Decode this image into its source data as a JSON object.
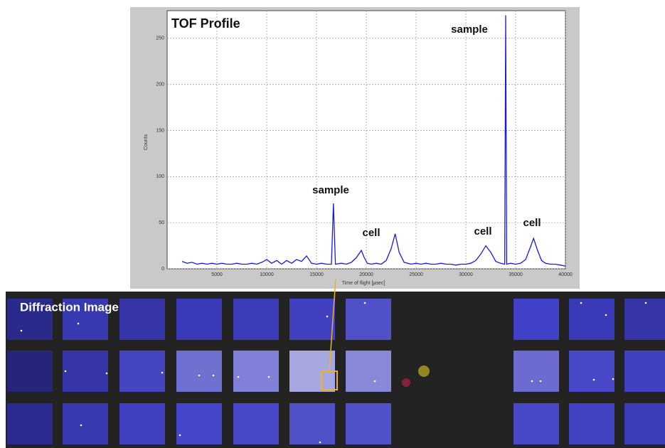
{
  "chart_data": {
    "type": "line",
    "title": "TOF Profile",
    "x_label": "Time of flight [μsec]",
    "y_label": "Counts",
    "x": [
      1500,
      2000,
      2500,
      3000,
      3500,
      4000,
      4500,
      5000,
      5500,
      6000,
      6500,
      7000,
      7500,
      8000,
      8500,
      9000,
      9500,
      10000,
      10500,
      11000,
      11500,
      12000,
      12500,
      13000,
      13500,
      14000,
      14500,
      15000,
      15500,
      16000,
      16500,
      16700,
      16900,
      17500,
      18000,
      18500,
      19000,
      19500,
      19800,
      20100,
      20500,
      21000,
      21500,
      22000,
      22500,
      22900,
      23300,
      23800,
      24500,
      25000,
      25500,
      26000,
      26500,
      27000,
      27500,
      28000,
      28500,
      29000,
      29500,
      30000,
      30500,
      31000,
      31500,
      32000,
      32500,
      33000,
      33500,
      33900,
      34000,
      34100,
      34500,
      35000,
      35500,
      36000,
      36500,
      36800,
      37200,
      37600,
      38000,
      38500,
      39000,
      39500,
      40000
    ],
    "values": [
      8,
      6,
      7,
      5,
      6,
      5,
      6,
      5,
      6,
      5,
      5,
      6,
      5,
      5,
      6,
      5,
      7,
      10,
      6,
      9,
      5,
      9,
      6,
      10,
      8,
      14,
      6,
      5,
      6,
      5,
      5,
      71,
      5,
      6,
      5,
      7,
      12,
      20,
      12,
      6,
      5,
      6,
      5,
      9,
      22,
      38,
      18,
      7,
      5,
      6,
      5,
      6,
      5,
      5,
      6,
      5,
      5,
      4,
      5,
      5,
      6,
      9,
      16,
      25,
      18,
      8,
      6,
      5,
      275,
      5,
      6,
      5,
      6,
      10,
      24,
      33,
      20,
      9,
      6,
      5,
      5,
      4,
      3
    ],
    "color": "#1a1adf",
    "xlim": [
      0,
      40000
    ],
    "ylim": [
      0,
      280
    ],
    "xticks": [
      5000,
      10000,
      15000,
      20000,
      25000,
      30000,
      35000,
      40000
    ],
    "yticks": [
      0,
      50,
      100,
      150,
      200,
      250
    ],
    "grid": true,
    "annotations": [
      "sample",
      "cell",
      "cell",
      "sample",
      "cell"
    ]
  },
  "diffraction_image": {
    "title": "Diffraction Image"
  }
}
